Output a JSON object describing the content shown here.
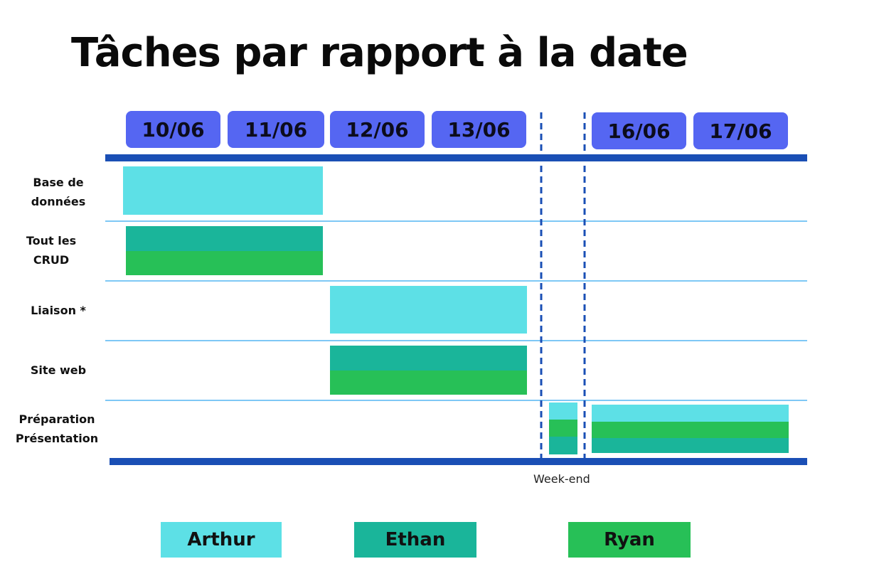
{
  "title": "Tâches par rapport à la date",
  "chart_data": {
    "type": "gantt",
    "dates": [
      "10/06",
      "11/06",
      "12/06",
      "13/06",
      "16/06",
      "17/06"
    ],
    "weekend_label": "Week-end",
    "tasks": [
      {
        "label_lines": [
          "Base de",
          "données"
        ]
      },
      {
        "label_lines": [
          "Tout les",
          "CRUD"
        ]
      },
      {
        "label_lines": [
          "Liaison *"
        ]
      },
      {
        "label_lines": [
          "Site web"
        ]
      },
      {
        "label_lines": [
          "Préparation",
          "Présentation"
        ]
      }
    ],
    "people": [
      {
        "name": "Arthur",
        "color": "#5de0e6"
      },
      {
        "name": "Ethan",
        "color": "#1ab59a"
      },
      {
        "name": "Ryan",
        "color": "#27c057"
      }
    ],
    "assignments": [
      {
        "task": 0,
        "start": "10/06",
        "end": "11/06",
        "people": [
          "Arthur"
        ]
      },
      {
        "task": 1,
        "start": "10/06",
        "end": "11/06",
        "people": [
          "Ethan",
          "Ryan"
        ]
      },
      {
        "task": 2,
        "start": "12/06",
        "end": "13/06",
        "people": [
          "Arthur"
        ]
      },
      {
        "task": 3,
        "start": "12/06",
        "end": "13/06",
        "people": [
          "Ethan",
          "Ryan"
        ]
      },
      {
        "task": 4,
        "start": "Week-end",
        "end": "Week-end",
        "people": [
          "Arthur",
          "Ryan",
          "Ethan"
        ]
      },
      {
        "task": 4,
        "start": "16/06",
        "end": "17/06",
        "people": [
          "Arthur",
          "Ryan",
          "Ethan"
        ]
      }
    ],
    "colors": {
      "axis": "#1a4fb5",
      "separator": "#7ec8f5",
      "date_pill": "#5566f2"
    }
  }
}
